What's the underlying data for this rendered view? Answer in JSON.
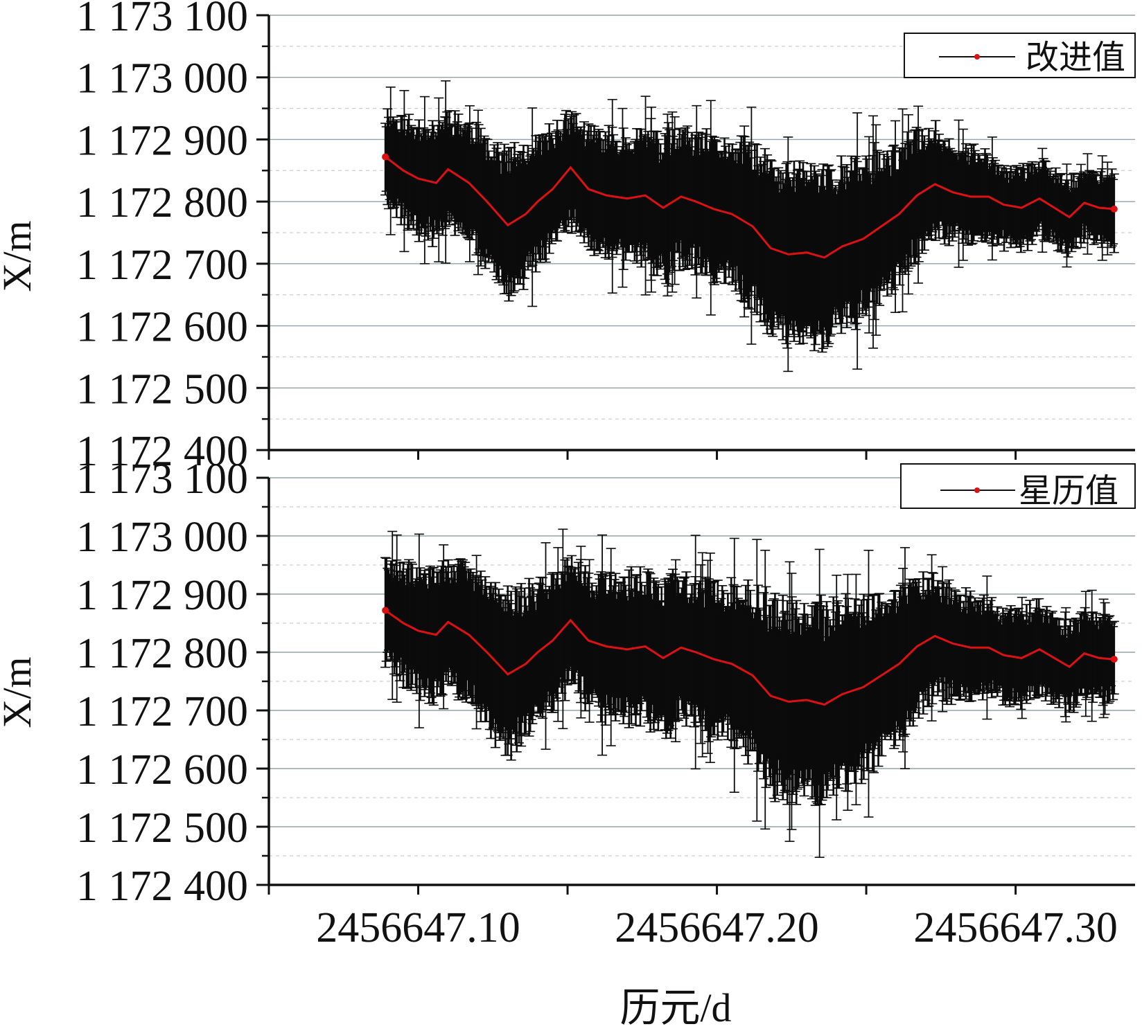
{
  "chart_data": [
    {
      "type": "line",
      "ylabel": "X/m",
      "xlabel": "",
      "ylim": [
        1172400,
        1173100
      ],
      "yticks": [
        1173100,
        1173000,
        1172900,
        1172800,
        1172700,
        1172600,
        1172500,
        1172400
      ],
      "ytick_labels": [
        "1 173 100",
        "1 173 000",
        "1 172 900",
        "1 172 800",
        "1 172 700",
        "1 172 600",
        "1 172 500",
        "1 172 400"
      ],
      "xlim": [
        2456647.05,
        2456647.34
      ],
      "grid": true,
      "legend": {
        "position": "top-right",
        "entries": [
          "改进值"
        ]
      },
      "colors": {
        "line": "#dd1111",
        "errorbar": "#0b0b0b",
        "grid": "#8fa3aa"
      },
      "series": [
        {
          "name": "改进值",
          "x": [
            2456647.089,
            2456647.095,
            2456647.1,
            2456647.106,
            2456647.11,
            2456647.117,
            2456647.123,
            2456647.13,
            2456647.136,
            2456647.14,
            2456647.145,
            2456647.151,
            2456647.157,
            2456647.163,
            2456647.17,
            2456647.176,
            2456647.182,
            2456647.188,
            2456647.193,
            2456647.199,
            2456647.205,
            2456647.212,
            2456647.218,
            2456647.224,
            2456647.23,
            2456647.236,
            2456647.242,
            2456647.249,
            2456647.255,
            2456647.261,
            2456647.267,
            2456647.273,
            2456647.279,
            2456647.285,
            2456647.291,
            2456647.296,
            2456647.302,
            2456647.308,
            2456647.313,
            2456647.318,
            2456647.323,
            2456647.328,
            2456647.333
          ],
          "values": [
            1172872,
            1172850,
            1172837,
            1172830,
            1172852,
            1172830,
            1172800,
            1172762,
            1172780,
            1172800,
            1172820,
            1172855,
            1172820,
            1172810,
            1172805,
            1172810,
            1172790,
            1172808,
            1172800,
            1172788,
            1172780,
            1172760,
            1172725,
            1172715,
            1172718,
            1172710,
            1172728,
            1172740,
            1172760,
            1172780,
            1172810,
            1172828,
            1172815,
            1172808,
            1172808,
            1172795,
            1172790,
            1172805,
            1172790,
            1172775,
            1172798,
            1172790,
            1172788
          ],
          "error_half_width": [
            70,
            80,
            85,
            90,
            90,
            90,
            100,
            110,
            100,
            95,
            90,
            85,
            90,
            95,
            100,
            100,
            105,
            100,
            100,
            105,
            110,
            125,
            130,
            135,
            135,
            135,
            125,
            120,
            110,
            100,
            95,
            85,
            75,
            70,
            65,
            60,
            60,
            60,
            55,
            55,
            50,
            55,
            55
          ]
        }
      ]
    },
    {
      "type": "line",
      "ylabel": "X/m",
      "xlabel": "历元/d",
      "ylim": [
        1172400,
        1173100
      ],
      "yticks": [
        1173100,
        1173000,
        1172900,
        1172800,
        1172700,
        1172600,
        1172500,
        1172400
      ],
      "ytick_labels": [
        "1 173 100",
        "1 173 000",
        "1 172 900",
        "1 172 800",
        "1 172 700",
        "1 172 600",
        "1 172 500",
        "1 172 400"
      ],
      "xlim": [
        2456647.05,
        2456647.34
      ],
      "xticks": [
        2456647.1,
        2456647.2,
        2456647.3
      ],
      "xtick_labels": [
        "2456647.10",
        "2456647.20",
        "2456647.30"
      ],
      "grid": true,
      "legend": {
        "position": "top-right",
        "entries": [
          "星历值"
        ]
      },
      "colors": {
        "line": "#dd1111",
        "errorbar": "#0b0b0b",
        "grid": "#8fa3aa"
      },
      "series": [
        {
          "name": "星历值",
          "x": [
            2456647.089,
            2456647.095,
            2456647.1,
            2456647.106,
            2456647.11,
            2456647.117,
            2456647.123,
            2456647.13,
            2456647.136,
            2456647.14,
            2456647.145,
            2456647.151,
            2456647.157,
            2456647.163,
            2456647.17,
            2456647.176,
            2456647.182,
            2456647.188,
            2456647.193,
            2456647.199,
            2456647.205,
            2456647.212,
            2456647.218,
            2456647.224,
            2456647.23,
            2456647.236,
            2456647.242,
            2456647.249,
            2456647.255,
            2456647.261,
            2456647.267,
            2456647.273,
            2456647.279,
            2456647.285,
            2456647.291,
            2456647.296,
            2456647.302,
            2456647.308,
            2456647.313,
            2456647.318,
            2456647.323,
            2456647.328,
            2456647.333
          ],
          "values": [
            1172872,
            1172850,
            1172837,
            1172830,
            1172852,
            1172830,
            1172800,
            1172762,
            1172780,
            1172800,
            1172820,
            1172855,
            1172820,
            1172810,
            1172805,
            1172810,
            1172790,
            1172808,
            1172800,
            1172788,
            1172780,
            1172760,
            1172725,
            1172715,
            1172718,
            1172710,
            1172728,
            1172740,
            1172760,
            1172780,
            1172810,
            1172828,
            1172815,
            1172808,
            1172808,
            1172795,
            1172790,
            1172805,
            1172790,
            1172775,
            1172798,
            1172790,
            1172788
          ],
          "error_half_width": [
            85,
            95,
            100,
            105,
            105,
            110,
            120,
            130,
            120,
            115,
            110,
            105,
            110,
            115,
            120,
            120,
            125,
            120,
            120,
            125,
            130,
            145,
            155,
            160,
            160,
            160,
            150,
            140,
            130,
            120,
            110,
            100,
            90,
            85,
            80,
            75,
            75,
            75,
            70,
            70,
            65,
            70,
            70
          ]
        }
      ]
    }
  ]
}
